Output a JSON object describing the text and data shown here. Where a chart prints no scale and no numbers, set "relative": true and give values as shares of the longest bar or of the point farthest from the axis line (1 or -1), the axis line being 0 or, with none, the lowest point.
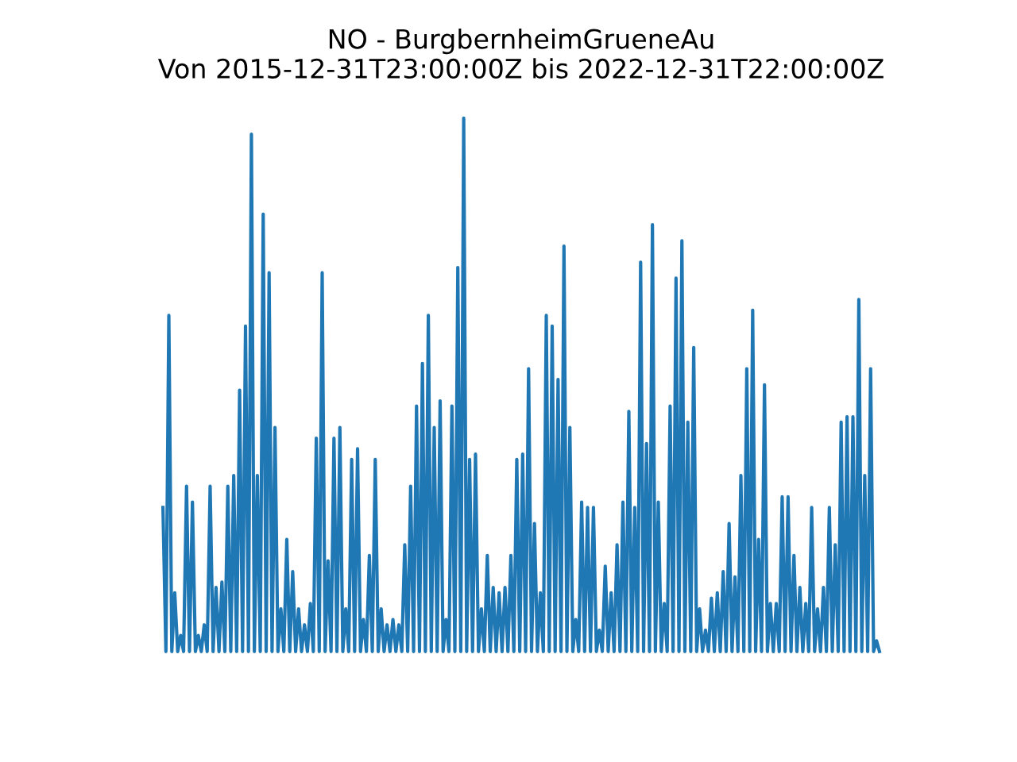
{
  "chart_data": {
    "type": "line",
    "title": "NO - BurgbernheimGrueneAu\nVon 2015-12-31T23:00:00Z bis 2022-12-31T22:00:00Z",
    "relative": true,
    "tick_labels": false,
    "color": "#1f77b4",
    "categories": [
      null,
      null,
      null,
      null,
      null,
      null,
      null,
      null,
      null,
      null,
      null,
      null,
      null,
      null,
      null,
      null,
      null,
      null,
      null,
      null,
      null,
      null,
      null,
      null,
      null,
      null,
      null,
      null,
      null,
      null,
      null,
      null,
      null,
      null,
      null,
      null,
      null,
      null,
      null,
      null,
      null,
      null,
      null,
      null,
      null,
      null,
      null,
      null,
      null,
      null,
      null,
      null,
      null,
      null,
      null,
      null,
      null,
      null,
      null,
      null,
      null,
      null,
      null,
      null,
      null,
      null,
      null,
      null,
      null,
      null,
      null,
      null,
      null,
      null,
      null,
      null,
      null,
      null,
      null,
      null,
      null,
      null,
      null,
      null,
      null,
      null,
      null,
      null,
      null,
      null,
      null,
      null,
      null,
      null,
      null,
      null,
      null,
      null,
      null,
      null,
      null,
      null,
      null,
      null,
      null,
      null,
      null,
      null,
      null,
      null,
      null,
      null,
      null,
      null,
      null,
      null,
      null,
      null,
      null,
      null,
      null,
      null,
      null,
      null,
      null,
      null,
      null,
      null,
      null,
      null,
      null,
      null,
      null,
      null,
      null,
      null,
      null,
      null,
      null,
      null,
      null,
      null,
      null,
      null,
      null,
      null,
      null,
      null,
      null,
      null,
      null,
      null,
      null,
      null,
      null,
      null,
      null,
      null,
      null,
      null,
      null,
      null,
      null,
      null,
      null,
      null,
      null,
      null,
      null,
      null,
      null,
      null,
      null,
      null,
      null,
      null,
      null,
      null,
      null,
      null,
      null,
      null,
      null,
      null,
      null,
      null,
      null,
      null,
      null,
      null,
      null,
      null,
      null,
      null,
      null,
      null,
      null,
      null,
      null,
      null,
      null,
      null,
      null,
      null,
      null,
      null,
      null,
      null,
      null,
      null,
      null,
      null,
      null,
      null,
      null,
      null,
      null,
      null,
      null,
      null,
      null,
      null,
      null,
      null,
      null,
      null,
      null,
      null,
      null,
      null,
      null,
      null,
      null,
      null,
      null,
      null,
      null,
      null,
      null,
      null,
      null,
      null,
      null,
      null
    ],
    "values": [
      0.27,
      0,
      0.63,
      0,
      0.11,
      0,
      0.03,
      0,
      0.31,
      0,
      0.28,
      0,
      0.03,
      0,
      0.05,
      0,
      0.31,
      0,
      0.12,
      0,
      0.13,
      0,
      0.31,
      0,
      0.33,
      0,
      0.49,
      0,
      0.61,
      0,
      0.97,
      0,
      0.33,
      0,
      0.82,
      0,
      0.71,
      0,
      0.42,
      0,
      0.08,
      0,
      0.21,
      0,
      0.15,
      0,
      0.08,
      0,
      0.05,
      0,
      0.09,
      0,
      0.4,
      0,
      0.71,
      0,
      0.17,
      0,
      0.4,
      0,
      0.42,
      0,
      0.08,
      0,
      0.36,
      0,
      0.38,
      0,
      0.06,
      0,
      0.18,
      0,
      0.36,
      0,
      0.08,
      0,
      0.05,
      0,
      0.06,
      0,
      0.05,
      0,
      0.2,
      0,
      0.31,
      0,
      0.46,
      0,
      0.54,
      0,
      0.63,
      0,
      0.42,
      0,
      0.47,
      0,
      0.06,
      0,
      0.46,
      0,
      0.72,
      0,
      1,
      0,
      0.36,
      0,
      0.37,
      0,
      0.08,
      0,
      0.18,
      0,
      0.12,
      0,
      0.11,
      0,
      0.12,
      0,
      0.18,
      0,
      0.36,
      0,
      0.37,
      0,
      0.53,
      0,
      0.24,
      0,
      0.11,
      0,
      0.63,
      0,
      0.61,
      0,
      0.51,
      0,
      0.76,
      0,
      0.42,
      0,
      0.06,
      0,
      0.28,
      0,
      0.27,
      0,
      0.27,
      0,
      0.04,
      0,
      0.16,
      0,
      0.11,
      0,
      0.2,
      0,
      0.28,
      0,
      0.45,
      0,
      0.27,
      0,
      0.73,
      0,
      0.39,
      0,
      0.8,
      0,
      0.28,
      0,
      0.09,
      0,
      0.46,
      0,
      0.7,
      0,
      0.77,
      0,
      0.43,
      0,
      0.57,
      0,
      0.08,
      0,
      0.04,
      0,
      0.1,
      0,
      0.11,
      0,
      0.15,
      0,
      0.24,
      0,
      0.14,
      0,
      0.33,
      0,
      0.53,
      0,
      0.64,
      0,
      0.21,
      0,
      0.5,
      0,
      0.09,
      0,
      0.09,
      0,
      0.29,
      0,
      0.29,
      0,
      0.18,
      0,
      0.12,
      0,
      0.09,
      0,
      0.27,
      0,
      0.08,
      0,
      0.12,
      0,
      0.27,
      0,
      0.2,
      0,
      0.43,
      0,
      0.44,
      0,
      0.44,
      0,
      0.66,
      0,
      0.33,
      0,
      0.53,
      0,
      0.02,
      0
    ]
  }
}
